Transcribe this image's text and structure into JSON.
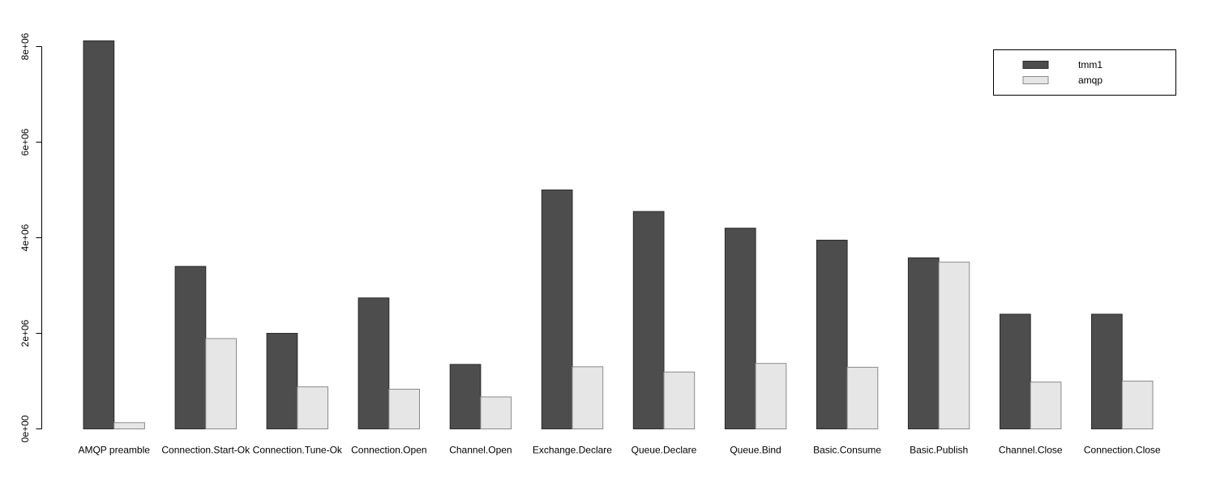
{
  "chart_data": {
    "type": "bar",
    "title": "",
    "xlabel": "",
    "ylabel": "",
    "grid": false,
    "legend_position": "top-right",
    "categories": [
      "AMQP preamble",
      "Connection.Start-Ok",
      "Connection.Tune-Ok",
      "Connection.Open",
      "Channel.Open",
      "Exchange.Declare",
      "Queue.Declare",
      "Queue.Bind",
      "Basic.Consume",
      "Basic.Publish",
      "Channel.Close",
      "Connection.Close"
    ],
    "series": [
      {
        "name": "tmm1",
        "values": [
          8120000,
          3400000,
          2000000,
          2740000,
          1350000,
          5000000,
          4550000,
          4200000,
          3950000,
          3580000,
          2400000,
          2400000
        ]
      },
      {
        "name": "amqp",
        "values": [
          130000,
          1890000,
          880000,
          830000,
          670000,
          1300000,
          1190000,
          1370000,
          1290000,
          3490000,
          980000,
          1000000
        ]
      }
    ],
    "ylim": [
      0,
      8200000
    ],
    "yticks": [
      {
        "value": 0,
        "label": "0e+00"
      },
      {
        "value": 2000000,
        "label": "2e+06"
      },
      {
        "value": 4000000,
        "label": "4e+06"
      },
      {
        "value": 6000000,
        "label": "6e+06"
      },
      {
        "value": 8000000,
        "label": "8e+06"
      }
    ],
    "colors": {
      "tmm1": "#4D4D4D",
      "amqp": "#E6E6E6",
      "tmm1_border": "#2B2B2B",
      "amqp_border": "#8A8A8A",
      "axis": "#000000",
      "text": "#000000"
    },
    "legend": {
      "items": [
        "tmm1",
        "amqp"
      ]
    }
  }
}
